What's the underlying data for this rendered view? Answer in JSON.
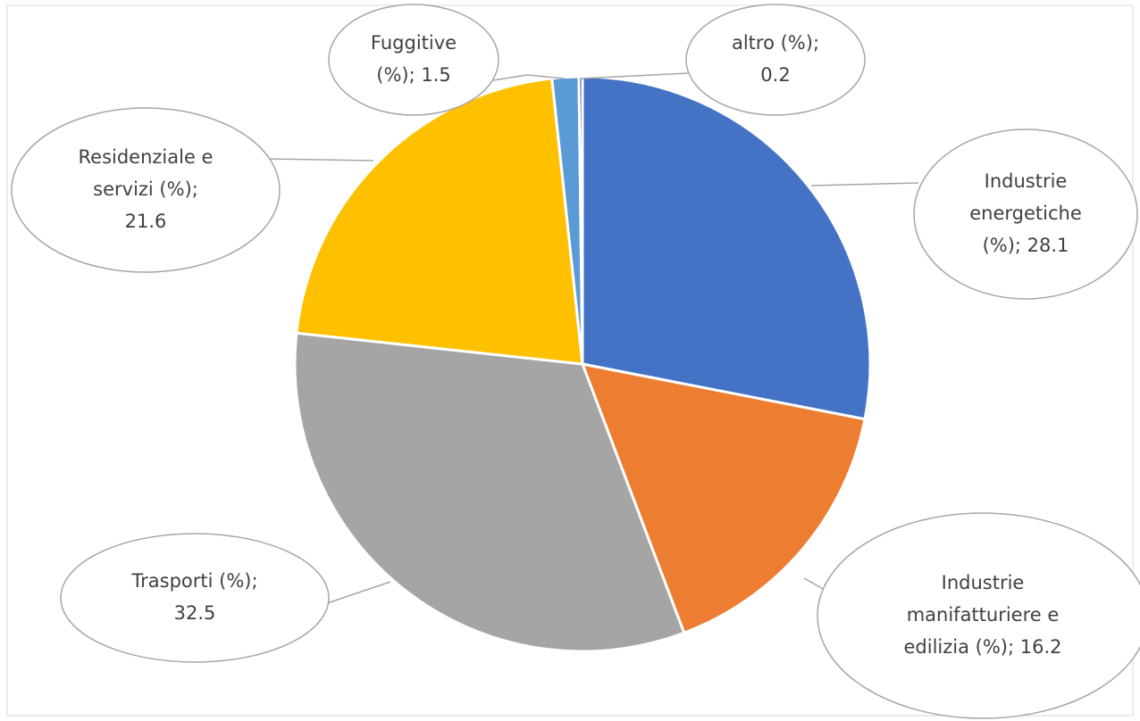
{
  "chart_data": {
    "type": "pie",
    "values": [
      28.1,
      16.2,
      32.5,
      21.6,
      1.5,
      0.2
    ],
    "value_labels": [
      [
        "Industrie",
        "energetiche",
        "(%); 28.1"
      ],
      [
        "Industrie",
        "manifatturiere e",
        "edilizia (%); 16.2"
      ],
      [
        "Trasporti (%);",
        "32.5"
      ],
      [
        "Residenziale e",
        "servizi (%);",
        "21.6"
      ],
      [
        "Fuggitive",
        "(%); 1.5"
      ],
      [
        "altro (%);",
        "0.2"
      ]
    ],
    "colors": [
      "#4472c4",
      "#ed7d31",
      "#a5a5a5",
      "#ffc000",
      "#5b9bd5",
      "#264478"
    ]
  }
}
